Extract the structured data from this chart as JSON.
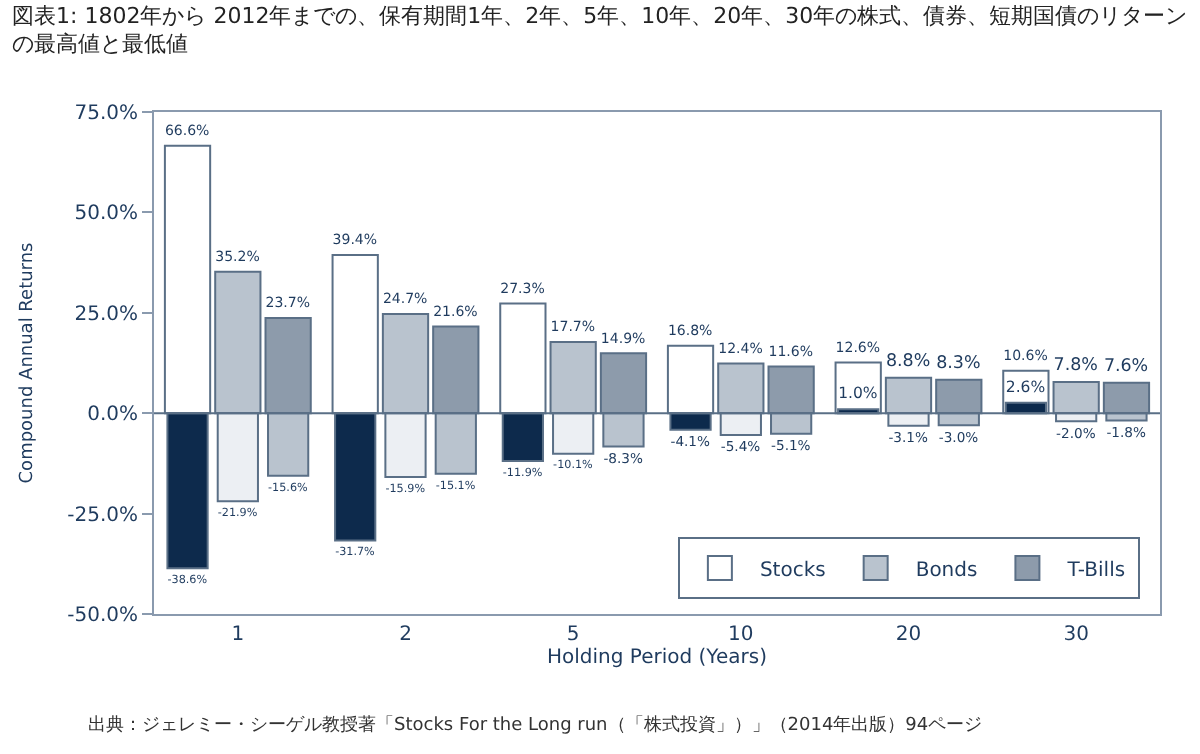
{
  "chart_data": {
    "type": "bar",
    "title": "図表1: 1802年から 2012年までの、保有期間1年、2年、5年、10年、20年、30年の株式、債券、短期国債のリターンの最高値と最低値",
    "xlabel": "Holding Period (Years)",
    "ylabel": "Compound Annual Returns",
    "categories": [
      "1",
      "2",
      "5",
      "10",
      "20",
      "30"
    ],
    "series": [
      {
        "name": "Stocks",
        "color": "#ffffff",
        "values": [
          66.6,
          39.4,
          27.3,
          16.8,
          12.6,
          10.6
        ],
        "value_labels": [
          "66.6%",
          "39.4%",
          "27.3%",
          "16.8%",
          "12.6%",
          "10.6%"
        ]
      },
      {
        "color": "#0d2a4c",
        "values": [
          -38.6,
          -31.7,
          -11.9,
          -4.1,
          1.0,
          2.6
        ],
        "value_labels": [
          "-38.6%",
          "-31.7%",
          "-11.9%",
          "-4.1%",
          "1.0%",
          "2.6%"
        ]
      },
      {
        "name": "Bonds",
        "color": "#b9c3ce",
        "values": [
          35.2,
          24.7,
          17.7,
          12.4,
          8.8,
          7.8
        ],
        "value_labels": [
          "35.2%",
          "24.7%",
          "17.7%",
          "12.4%",
          "8.8%",
          "7.8%"
        ]
      },
      {
        "color": "#eceff3",
        "values": [
          -21.9,
          -15.9,
          -10.1,
          -5.4,
          -3.1,
          -2.0
        ],
        "value_labels": [
          "-21.9%",
          "-15.9%",
          "-10.1%",
          "-5.4%",
          "-3.1%",
          "-2.0%"
        ]
      },
      {
        "name": "T-Bills",
        "color": "#8d9bab",
        "values": [
          23.7,
          21.6,
          14.9,
          11.6,
          8.3,
          7.6
        ],
        "value_labels": [
          "23.7%",
          "21.6%",
          "14.9%",
          "11.6%",
          "8.3%",
          "7.6%"
        ]
      },
      {
        "color": "#b9c3ce",
        "values": [
          -15.6,
          -15.1,
          -8.3,
          -5.1,
          -3.0,
          -1.8
        ],
        "value_labels": [
          "-15.6%",
          "-15.1%",
          "-8.3%",
          "-5.1%",
          "-3.0%",
          "-1.8%"
        ]
      }
    ],
    "ylim": [
      -50,
      75
    ],
    "yticks": [
      {
        "value": -50,
        "label": "-50.0%"
      },
      {
        "value": -25,
        "label": "-25.0%"
      },
      {
        "value": 0,
        "label": "0.0%"
      },
      {
        "value": 25,
        "label": "25.0%"
      },
      {
        "value": 50,
        "label": "50.0%"
      },
      {
        "value": 75,
        "label": "75.0%"
      }
    ],
    "ref_lines": [
      {
        "axis": "y",
        "value": 0,
        "color": "#5a6f86"
      }
    ],
    "legend": "bottom right",
    "annotations": [
      "出典：ジェレミー・シーゲル教授著「Stocks For the Long run（「株式投資」）」（2014年出版）94ページ"
    ]
  }
}
